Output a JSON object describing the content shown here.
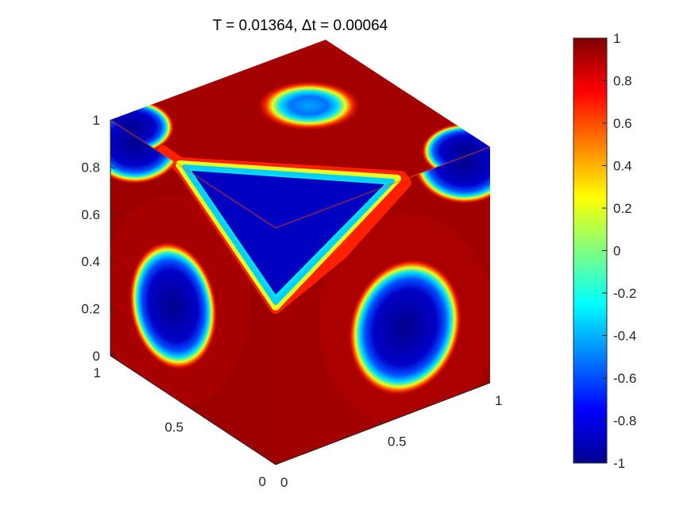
{
  "chart_data": {
    "type": "heatmap",
    "title": "T = 0.01364,  Δt = 0.00064",
    "colormap": "jet",
    "clim": [
      -1,
      1
    ],
    "xlim": [
      0,
      1
    ],
    "ylim": [
      0,
      1
    ],
    "zlim": [
      0,
      1
    ],
    "x_ticks": [
      "0",
      "0.5",
      "1"
    ],
    "y_ticks": [
      "0",
      "0.5",
      "1"
    ],
    "z_ticks": [
      "0",
      "0.2",
      "0.4",
      "0.6",
      "0.8",
      "1"
    ],
    "colorbar_ticks": [
      "1",
      "0.8",
      "0.6",
      "0.4",
      "0.2",
      "0",
      "-0.2",
      "-0.4",
      "-0.6",
      "-0.8",
      "-1"
    ],
    "background_value": 1,
    "faces": {
      "top": [
        {
          "u": 0.5,
          "v": 0.5,
          "value": -0.5,
          "shape": "ring"
        }
      ],
      "left": [
        {
          "u": 0.5,
          "v": 0.4,
          "value": -1,
          "shape": "ellipse"
        },
        {
          "u": 1.0,
          "v": 0.95,
          "value": -1,
          "shape": "corner"
        }
      ],
      "right": [
        {
          "u": 0.5,
          "v": 0.4,
          "value": -1,
          "shape": "ellipse"
        },
        {
          "u": 1.0,
          "v": 0.95,
          "value": -1,
          "shape": "corner"
        }
      ],
      "corner_region": {
        "value": -1,
        "shape": "triangle",
        "boundary_value": 0.3
      }
    }
  }
}
